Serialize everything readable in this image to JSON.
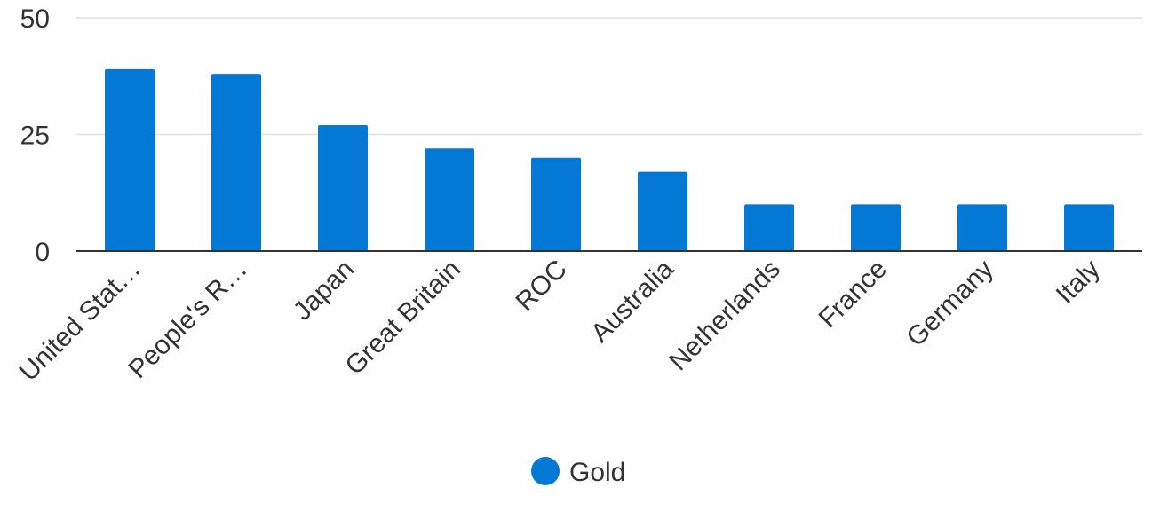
{
  "chart_data": {
    "type": "bar",
    "categories": [
      "United Stat…",
      "People's R…",
      "Japan",
      "Great Britain",
      "ROC",
      "Australia",
      "Netherlands",
      "France",
      "Germany",
      "Italy"
    ],
    "series": [
      {
        "name": "Gold",
        "values": [
          39,
          38,
          27,
          22,
          20,
          17,
          10,
          10,
          10,
          10
        ],
        "color": "#0378d4"
      }
    ],
    "yticks": [
      0,
      25,
      50
    ],
    "ylim": [
      0,
      50
    ],
    "grid": true,
    "legend_position": "bottom"
  }
}
